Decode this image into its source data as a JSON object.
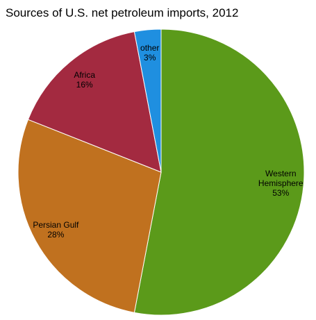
{
  "chart_data": {
    "type": "pie",
    "title": "Sources of U.S. net petroleum imports, 2012",
    "categories": [
      "Western Hemisphere",
      "Persian Gulf",
      "Africa",
      "other"
    ],
    "values": [
      53,
      28,
      16,
      3
    ],
    "value_labels": [
      "53%",
      "28%",
      "16%",
      "3%"
    ],
    "colors": [
      "#5b9a1a",
      "#c0711f",
      "#a32a40",
      "#1f8fe0"
    ]
  }
}
